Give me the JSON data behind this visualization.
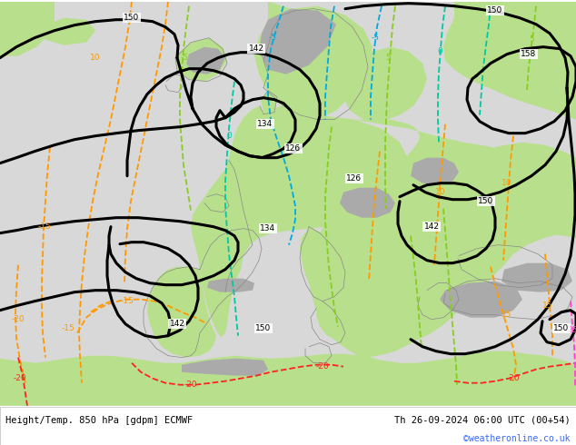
{
  "title_left": "Height/Temp. 850 hPa [gdpm] ECMWF",
  "title_right": "Th 26-09-2024 06:00 UTC (00+54)",
  "credit": "©weatheronline.co.uk",
  "background_color": "#ffffff",
  "fig_width": 6.34,
  "fig_height": 4.9,
  "dpi": 100,
  "sea_color": "#d8d8d8",
  "land_green": "#b8e08c",
  "land_green2": "#c8e89c",
  "mountain_gray": "#aaaaaa",
  "black": "#000000",
  "orange": "#ff9900",
  "red": "#ff2222",
  "cyan": "#00aadd",
  "teal": "#00c8a0",
  "green_dash": "#88cc22",
  "pink": "#ff44cc",
  "coast_color": "#888888",
  "label_fs": 6.5,
  "footer_fs": 7.5,
  "credit_fs": 7.0,
  "credit_color": "#3366ff"
}
